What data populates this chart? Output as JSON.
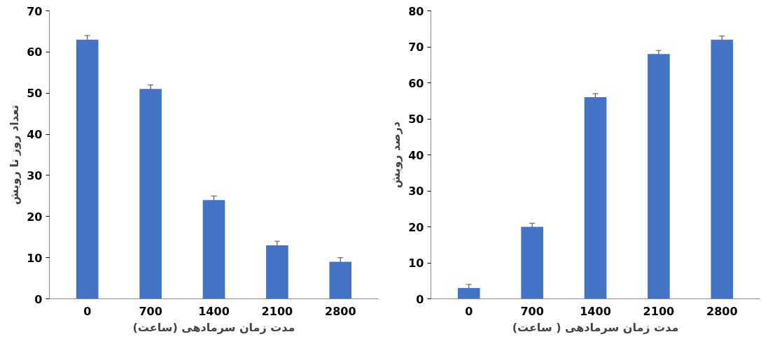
{
  "chart_data": [
    {
      "type": "bar",
      "xlabel": "مدت زمان سرمادهی (ساعت)",
      "ylabel": "تعداد روز تا رویش",
      "categories": [
        "0",
        "700",
        "1400",
        "2100",
        "2800"
      ],
      "values": [
        63,
        51,
        24,
        13,
        9
      ],
      "errors": [
        1,
        1,
        1,
        1,
        1
      ],
      "color": "#4472c4",
      "ylim": [
        0,
        70
      ],
      "yticks": [
        0,
        10,
        20,
        30,
        40,
        50,
        60,
        70
      ],
      "grid": false
    },
    {
      "type": "bar",
      "xlabel": "مدت زمان سرمادهی ( ساعت)",
      "ylabel": "درصد رویش",
      "categories": [
        "0",
        "700",
        "1400",
        "2100",
        "2800"
      ],
      "values": [
        3,
        20,
        56,
        68,
        72
      ],
      "errors": [
        1,
        1,
        1,
        1,
        1
      ],
      "color": "#4472c4",
      "ylim": [
        0,
        80
      ],
      "yticks": [
        0,
        10,
        20,
        30,
        40,
        50,
        60,
        70,
        80
      ],
      "grid": false
    }
  ]
}
